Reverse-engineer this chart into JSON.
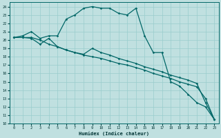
{
  "xlabel": "Humidex (Indice chaleur)",
  "bg_color": "#c0e0e0",
  "line_color": "#006666",
  "grid_color": "#99cccc",
  "xlim": [
    -0.5,
    23.5
  ],
  "ylim": [
    10,
    24.5
  ],
  "xticks": [
    0,
    1,
    2,
    3,
    4,
    5,
    6,
    7,
    8,
    9,
    10,
    11,
    12,
    13,
    14,
    15,
    16,
    17,
    18,
    19,
    20,
    21,
    22,
    23
  ],
  "yticks": [
    10,
    11,
    12,
    13,
    14,
    15,
    16,
    17,
    18,
    19,
    20,
    21,
    22,
    23,
    24
  ],
  "line_peak_x": [
    0,
    1,
    2,
    3,
    4,
    5,
    6,
    7,
    8,
    9,
    10,
    11,
    12,
    13,
    14,
    15,
    16,
    17,
    18,
    19,
    20,
    21,
    22,
    23
  ],
  "line_peak_y": [
    20.3,
    20.5,
    21.0,
    20.2,
    20.5,
    20.5,
    22.5,
    23.0,
    23.8,
    24.0,
    23.8,
    23.8,
    23.2,
    23.0,
    23.8,
    20.5,
    18.5,
    18.5,
    15.0,
    14.5,
    13.5,
    12.5,
    12.0,
    10.5
  ],
  "line_diag_x": [
    0,
    1,
    2,
    3,
    4,
    5,
    6,
    7,
    8,
    9,
    10,
    11,
    12,
    13,
    14,
    15,
    16,
    17,
    18,
    19,
    20,
    21,
    22,
    23
  ],
  "line_diag_y": [
    20.3,
    20.3,
    20.3,
    20.0,
    19.5,
    19.2,
    18.8,
    18.5,
    18.2,
    18.0,
    17.8,
    17.5,
    17.2,
    17.0,
    16.7,
    16.4,
    16.0,
    15.7,
    15.4,
    15.0,
    14.7,
    14.4,
    13.0,
    10.5
  ],
  "line_mid_x": [
    0,
    1,
    2,
    3,
    4,
    5,
    6,
    7,
    8,
    9,
    10,
    11,
    12,
    13,
    14,
    15,
    16,
    17,
    18,
    19,
    20,
    21,
    22,
    23
  ],
  "line_mid_y": [
    20.3,
    20.3,
    20.2,
    19.5,
    20.2,
    19.2,
    18.8,
    18.5,
    18.3,
    19.0,
    18.5,
    18.2,
    17.8,
    17.5,
    17.2,
    16.8,
    16.5,
    16.2,
    15.8,
    15.5,
    15.2,
    14.8,
    12.5,
    10.5
  ]
}
